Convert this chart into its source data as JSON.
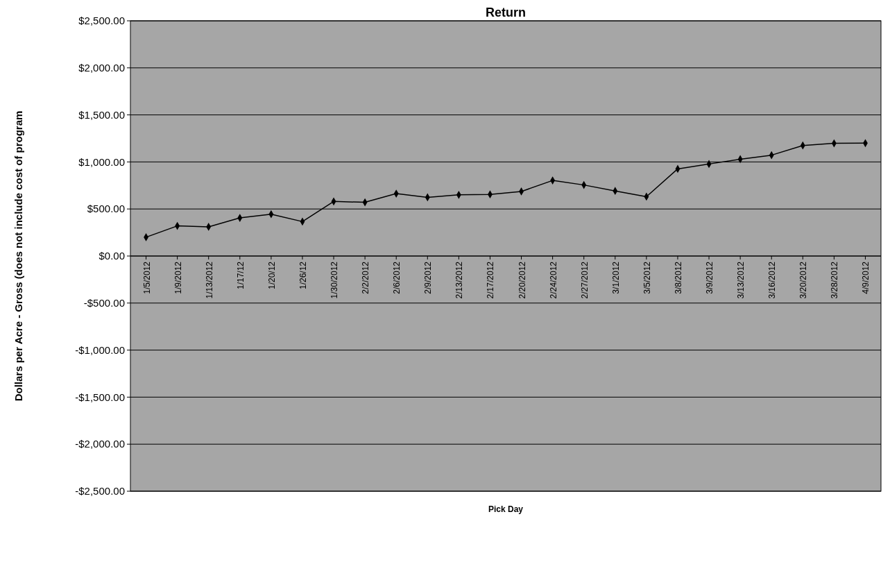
{
  "chart_data": {
    "type": "line",
    "title": "Return",
    "xlabel": "Pick Day",
    "ylabel": "Dollars per Acre - Gross (does not include cost of program",
    "categories": [
      "1/5/2012",
      "1/9/2012",
      "1/13/2012",
      "1/17/12",
      "1/20/12",
      "1/26/12",
      "1/30/2012",
      "2/2/2012",
      "2/6/2012",
      "2/9/2012",
      "2/13/2012",
      "2/17/2012",
      "2/20/2012",
      "2/24/2012",
      "2/27/2012",
      "3/1/2012",
      "3/5/2012",
      "3/8/2012",
      "3/9/2012",
      "3/13/2012",
      "3/16/2012",
      "3/20/2012",
      "3/28/2012",
      "4/9/2012"
    ],
    "series": [
      {
        "color": "#000000",
        "values": [
          200,
          320,
          310,
          405,
          445,
          366,
          580,
          571,
          663,
          624,
          650,
          655,
          686,
          803,
          755,
          692,
          631,
          926,
          978,
          1029,
          1072,
          1175,
          1198,
          1200
        ]
      }
    ],
    "ylim": [
      -2500,
      2500
    ],
    "yticks": [
      {
        "value": -2500,
        "label": "-$2,500.00"
      },
      {
        "value": -2000,
        "label": "-$2,000.00"
      },
      {
        "value": -1500,
        "label": "-$1,500.00"
      },
      {
        "value": -1000,
        "label": "-$1,000.00"
      },
      {
        "value": -500,
        "label": "-$500.00"
      },
      {
        "value": 0,
        "label": "$0.00"
      },
      {
        "value": 500,
        "label": "$500.00"
      },
      {
        "value": 1000,
        "label": "$1,000.00"
      },
      {
        "value": 1500,
        "label": "$1,500.00"
      },
      {
        "value": 2000,
        "label": "$2,000.00"
      },
      {
        "value": 2500,
        "label": "$2,500.00"
      }
    ],
    "grid": "y",
    "marker": "diamond",
    "line_style": "solid"
  }
}
